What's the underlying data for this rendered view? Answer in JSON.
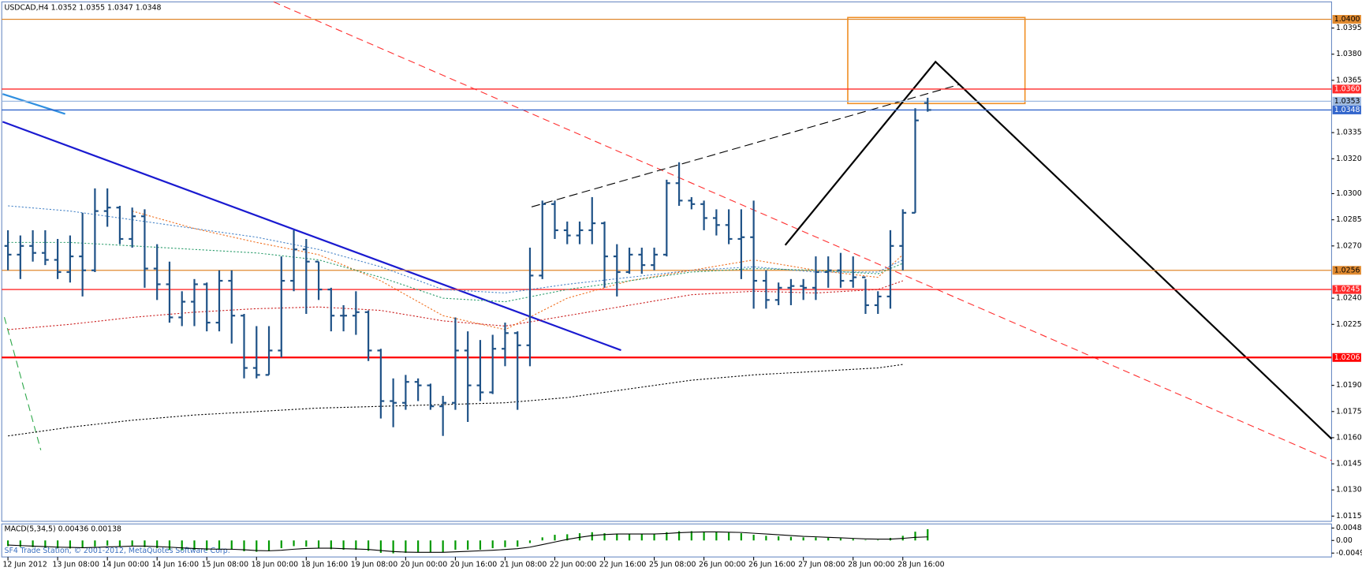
{
  "chart_data": {
    "type": "ohlc",
    "title": "USDCAD,H4  1.0352 1.0355 1.0347 1.0348",
    "footer": "SF4 Trade Station, © 2001-2012, MetaQuotes Software Corp.",
    "bar_color": "#1f5287",
    "xlim": [
      -0.5,
      106.5
    ],
    "ylim": [
      1.0112,
      1.041
    ],
    "yticks": [
      {
        "value": 1.0395,
        "label": "1.0395"
      },
      {
        "value": 1.038,
        "label": "1.0380"
      },
      {
        "value": 1.0365,
        "label": "1.0365"
      },
      {
        "value": 1.0335,
        "label": "1.0335"
      },
      {
        "value": 1.032,
        "label": "1.0320"
      },
      {
        "value": 1.03,
        "label": "1.0300"
      },
      {
        "value": 1.0285,
        "label": "1.0285"
      },
      {
        "value": 1.027,
        "label": "1.0270"
      },
      {
        "value": 1.024,
        "label": "1.0240"
      },
      {
        "value": 1.0225,
        "label": "1.0225"
      },
      {
        "value": 1.019,
        "label": "1.0190"
      },
      {
        "value": 1.0175,
        "label": "1.0175"
      },
      {
        "value": 1.016,
        "label": "1.0160"
      },
      {
        "value": 1.0145,
        "label": "1.0145"
      },
      {
        "value": 1.013,
        "label": "1.0130"
      },
      {
        "value": 1.0115,
        "label": "1.0115"
      }
    ],
    "xticks": [
      {
        "value": 0,
        "label": "12 Jun 2012"
      },
      {
        "value": 4,
        "label": "13 Jun 08:00"
      },
      {
        "value": 8,
        "label": "14 Jun 00:00"
      },
      {
        "value": 12,
        "label": "14 Jun 16:00"
      },
      {
        "value": 16,
        "label": "15 Jun 08:00"
      },
      {
        "value": 20,
        "label": "18 Jun 00:00"
      },
      {
        "value": 24,
        "label": "18 Jun 16:00"
      },
      {
        "value": 28,
        "label": "19 Jun 08:00"
      },
      {
        "value": 32,
        "label": "20 Jun 00:00"
      },
      {
        "value": 36,
        "label": "20 Jun 16:00"
      },
      {
        "value": 40,
        "label": "21 Jun 08:00"
      },
      {
        "value": 44,
        "label": "22 Jun 00:00"
      },
      {
        "value": 48,
        "label": "22 Jun 16:00"
      },
      {
        "value": 52,
        "label": "25 Jun 08:00"
      },
      {
        "value": 56,
        "label": "26 Jun 00:00"
      },
      {
        "value": 60,
        "label": "26 Jun 16:00"
      },
      {
        "value": 64,
        "label": "27 Jun 08:00"
      },
      {
        "value": 68,
        "label": "28 Jun 00:00"
      },
      {
        "value": 72,
        "label": "28 Jun 16:00"
      }
    ],
    "ohlc": {
      "open": [
        1.027,
        1.0265,
        1.027,
        1.0266,
        1.0262,
        1.0255,
        1.0264,
        1.0256,
        1.029,
        1.0292,
        1.0274,
        1.0287,
        1.0257,
        1.0248,
        1.0229,
        1.0238,
        1.0248,
        1.0226,
        1.025,
        1.023,
        1.02,
        1.0196,
        1.021,
        1.025,
        1.0268,
        1.0261,
        1.0245,
        1.023,
        1.023,
        1.0232,
        1.021,
        1.0181,
        1.018,
        1.0192,
        1.019,
        1.0178,
        1.018,
        1.021,
        1.019,
        1.0186,
        1.0211,
        1.022,
        1.0213,
        1.0253,
        1.0294,
        1.0279,
        1.0276,
        1.0279,
        1.0283,
        1.0264,
        1.0255,
        1.0265,
        1.0259,
        1.0265,
        1.0306,
        1.0296,
        1.0294,
        1.0286,
        1.0282,
        1.0274,
        1.0275,
        1.025,
        1.0239,
        1.0246,
        1.0247,
        1.0246,
        1.0255,
        1.0256,
        1.025,
        1.0252,
        1.0236,
        1.0241,
        1.027,
        1.0289,
        1.0352
      ],
      "high": [
        1.0279,
        1.0276,
        1.0279,
        1.0279,
        1.0274,
        1.0276,
        1.0289,
        1.0303,
        1.0303,
        1.0293,
        1.0292,
        1.0291,
        1.0271,
        1.0261,
        1.0244,
        1.0251,
        1.0249,
        1.0256,
        1.0256,
        1.0231,
        1.0224,
        1.0224,
        1.0264,
        1.0279,
        1.0274,
        1.0261,
        1.0246,
        1.0236,
        1.0244,
        1.0233,
        1.0211,
        1.0194,
        1.0196,
        1.0194,
        1.0191,
        1.0184,
        1.0229,
        1.0221,
        1.0216,
        1.0219,
        1.0226,
        1.0221,
        1.0269,
        1.0296,
        1.0296,
        1.0284,
        1.0284,
        1.0298,
        1.0284,
        1.0271,
        1.0269,
        1.0269,
        1.0269,
        1.0308,
        1.0318,
        1.0298,
        1.0296,
        1.0291,
        1.0291,
        1.0291,
        1.0296,
        1.0256,
        1.0249,
        1.0251,
        1.0251,
        1.0264,
        1.0264,
        1.0266,
        1.0264,
        1.0251,
        1.0244,
        1.0279,
        1.0291,
        1.0349,
        1.0355
      ],
      "low": [
        1.0256,
        1.0251,
        1.0261,
        1.0259,
        1.0251,
        1.0249,
        1.0241,
        1.0255,
        1.0281,
        1.0271,
        1.0269,
        1.0246,
        1.0239,
        1.0226,
        1.0224,
        1.0224,
        1.0221,
        1.0221,
        1.0214,
        1.0194,
        1.0194,
        1.0196,
        1.0206,
        1.0244,
        1.0231,
        1.0239,
        1.0221,
        1.0221,
        1.0219,
        1.0204,
        1.0171,
        1.0166,
        1.0176,
        1.0181,
        1.0176,
        1.0161,
        1.0176,
        1.0169,
        1.0181,
        1.0185,
        1.0201,
        1.0176,
        1.0201,
        1.0251,
        1.0274,
        1.0271,
        1.0271,
        1.0271,
        1.0246,
        1.0241,
        1.0254,
        1.0254,
        1.0256,
        1.0264,
        1.0293,
        1.0291,
        1.0279,
        1.0276,
        1.0271,
        1.0251,
        1.0234,
        1.0234,
        1.0236,
        1.0236,
        1.0239,
        1.0239,
        1.0246,
        1.0246,
        1.0246,
        1.0231,
        1.0231,
        1.0234,
        1.0256,
        1.0289,
        1.0347
      ],
      "close": [
        1.0265,
        1.027,
        1.0266,
        1.0262,
        1.0255,
        1.0264,
        1.0256,
        1.029,
        1.0292,
        1.0274,
        1.0287,
        1.0257,
        1.0248,
        1.0229,
        1.0238,
        1.0248,
        1.0226,
        1.025,
        1.023,
        1.02,
        1.0196,
        1.021,
        1.025,
        1.0268,
        1.0261,
        1.0245,
        1.023,
        1.023,
        1.0232,
        1.021,
        1.0181,
        1.018,
        1.0192,
        1.019,
        1.0178,
        1.018,
        1.021,
        1.019,
        1.0186,
        1.0211,
        1.022,
        1.0213,
        1.0253,
        1.0294,
        1.0279,
        1.0276,
        1.0279,
        1.0283,
        1.0264,
        1.0255,
        1.0265,
        1.0259,
        1.0265,
        1.0306,
        1.0296,
        1.0294,
        1.0286,
        1.0282,
        1.0274,
        1.0275,
        1.025,
        1.0239,
        1.0246,
        1.0247,
        1.0246,
        1.0255,
        1.0256,
        1.025,
        1.0252,
        1.0236,
        1.0241,
        1.027,
        1.0289,
        1.0342,
        1.0348
      ]
    },
    "moving_averages": [
      {
        "color": "#000000",
        "x": [
          0,
          5,
          10,
          15,
          20,
          25,
          30,
          35,
          40,
          45,
          50,
          55,
          60,
          65,
          70,
          72
        ],
        "values": [
          1.0161,
          1.0166,
          1.017,
          1.0173,
          1.0175,
          1.0177,
          1.0178,
          1.0179,
          1.018,
          1.0183,
          1.0188,
          1.0193,
          1.0196,
          1.0198,
          1.02,
          1.0202
        ]
      },
      {
        "color": "#cc2222",
        "x": [
          0,
          5,
          10,
          15,
          20,
          25,
          30,
          35,
          40,
          45,
          50,
          55,
          60,
          65,
          70,
          72
        ],
        "values": [
          1.0222,
          1.0225,
          1.0229,
          1.0232,
          1.0234,
          1.0235,
          1.0233,
          1.0227,
          1.0224,
          1.023,
          1.0236,
          1.0242,
          1.0244,
          1.0243,
          1.0245,
          1.025
        ]
      },
      {
        "color": "#4a86c8",
        "x": [
          0,
          5,
          10,
          15,
          20,
          25,
          30,
          35,
          40,
          45,
          50,
          55,
          60,
          65,
          70,
          72
        ],
        "values": [
          1.0293,
          1.029,
          1.0285,
          1.028,
          1.0275,
          1.0268,
          1.0258,
          1.0245,
          1.0243,
          1.0248,
          1.0252,
          1.0256,
          1.0258,
          1.0255,
          1.0255,
          1.0262
        ]
      },
      {
        "color": "#f07020",
        "x": [
          10,
          15,
          20,
          25,
          30,
          35,
          40,
          45,
          50,
          55,
          60,
          65,
          70,
          72
        ],
        "values": [
          1.029,
          1.028,
          1.0272,
          1.0265,
          1.025,
          1.023,
          1.0222,
          1.024,
          1.025,
          1.0256,
          1.0262,
          1.0256,
          1.0252,
          1.0265
        ]
      },
      {
        "color": "#2e9e6e",
        "x": [
          0,
          5,
          10,
          15,
          20,
          25,
          30,
          35,
          40,
          45,
          50,
          55,
          60,
          65,
          70,
          72
        ],
        "values": [
          1.0272,
          1.0272,
          1.027,
          1.0268,
          1.0266,
          1.0262,
          1.0252,
          1.024,
          1.0238,
          1.0245,
          1.025,
          1.0255,
          1.0257,
          1.0256,
          1.0254,
          1.026
        ]
      }
    ],
    "levels": [
      {
        "value": 1.04,
        "label": "1.0400",
        "color": "#e08a30",
        "text_color": "#000000"
      },
      {
        "value": 1.036,
        "label": "1.0360",
        "color": "#ff2a2a",
        "text_color": "#ffffff"
      },
      {
        "value": 1.0353,
        "label": "1.0353",
        "color": "#9db9e0",
        "text_color": "#000000"
      },
      {
        "value": 1.0348,
        "label": "1.0348",
        "color": "#3366cc",
        "text_color": "#ffffff"
      },
      {
        "value": 1.0256,
        "label": "1.0256",
        "color": "#e08a30",
        "text_color": "#000000"
      },
      {
        "value": 1.0245,
        "label": "1.0245",
        "color": "#ff2a2a",
        "text_color": "#ffffff"
      },
      {
        "value": 1.0206,
        "label": "1.0206",
        "color": "#ff0000",
        "text_color": "#ffffff"
      }
    ],
    "macd": {
      "label": "MACD(5,34,5) 0.00436 0.00138",
      "hist_color": "#009900",
      "signal_color": "#000000",
      "ylim": [
        -0.0064,
        0.0064
      ],
      "yticks": [
        {
          "value": 0.0048,
          "label": "0.0048"
        },
        {
          "value": 0,
          "label": "0.00"
        },
        {
          "value": -0.0049,
          "label": "-0.0049"
        }
      ],
      "histogram": [
        -0.0022,
        -0.0025,
        -0.0026,
        -0.0028,
        -0.003,
        -0.0031,
        -0.003,
        -0.0024,
        -0.002,
        -0.0022,
        -0.002,
        -0.0026,
        -0.003,
        -0.0036,
        -0.0038,
        -0.0036,
        -0.0038,
        -0.0034,
        -0.0036,
        -0.0042,
        -0.0044,
        -0.0042,
        -0.003,
        -0.0022,
        -0.0024,
        -0.0028,
        -0.0034,
        -0.0036,
        -0.0036,
        -0.004,
        -0.0048,
        -0.005,
        -0.0048,
        -0.0046,
        -0.0046,
        -0.0046,
        -0.0036,
        -0.0036,
        -0.0036,
        -0.003,
        -0.0026,
        -0.0024,
        -0.001,
        0.0012,
        0.0022,
        0.0024,
        0.0028,
        0.0032,
        0.0028,
        0.0026,
        0.0026,
        0.0024,
        0.0024,
        0.0032,
        0.0036,
        0.0036,
        0.0034,
        0.0032,
        0.003,
        0.0028,
        0.0022,
        0.0018,
        0.0016,
        0.0014,
        0.0012,
        0.0012,
        0.001,
        0.0008,
        0.0006,
        0.0002,
        0.0002,
        0.001,
        0.0018,
        0.0034,
        0.00436
      ],
      "signal": [
        -0.0018,
        -0.002,
        -0.0022,
        -0.0024,
        -0.0026,
        -0.0027,
        -0.0028,
        -0.0027,
        -0.0025,
        -0.0024,
        -0.0022,
        -0.0022,
        -0.0024,
        -0.0026,
        -0.0029,
        -0.0031,
        -0.0033,
        -0.0034,
        -0.0034,
        -0.0036,
        -0.0039,
        -0.004,
        -0.0038,
        -0.0034,
        -0.0031,
        -0.003,
        -0.003,
        -0.0032,
        -0.0033,
        -0.0035,
        -0.0039,
        -0.0043,
        -0.0045,
        -0.0046,
        -0.0046,
        -0.0046,
        -0.0044,
        -0.0042,
        -0.004,
        -0.0038,
        -0.0035,
        -0.0032,
        -0.0026,
        -0.0016,
        -0.0006,
        0.0004,
        0.0012,
        0.0019,
        0.0023,
        0.0025,
        0.0025,
        0.0025,
        0.0025,
        0.0027,
        0.003,
        0.0032,
        0.0033,
        0.0033,
        0.0032,
        0.0031,
        0.0028,
        0.0025,
        0.0022,
        0.0019,
        0.0016,
        0.0014,
        0.0012,
        0.001,
        0.0008,
        0.0006,
        0.0005,
        0.0005,
        0.0008,
        0.0012,
        0.00138
      ]
    }
  }
}
